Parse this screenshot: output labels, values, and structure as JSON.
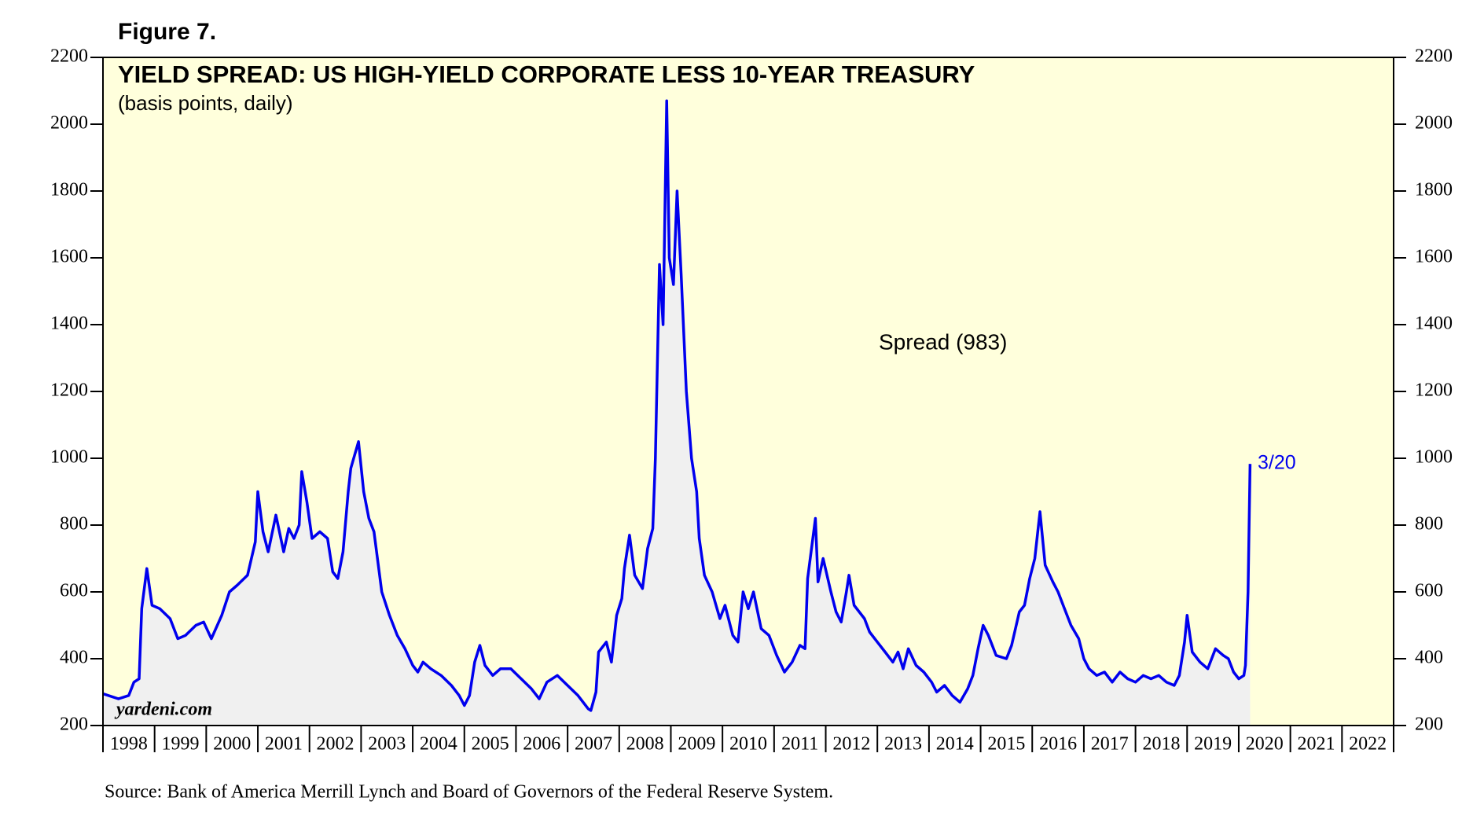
{
  "chart_data": {
    "type": "line",
    "figure_label": "Figure 7.",
    "title": "YIELD SPREAD: US HIGH-YIELD CORPORATE LESS 10-YEAR TREASURY",
    "subtitle": "(basis points, daily)",
    "annotation": "3/20",
    "watermark": "yardeni.com",
    "source": "Source: Bank of America Merrill Lynch and Board of Governors of the Federal Reserve System.",
    "xlim": [
      1998,
      2023
    ],
    "xticks": [
      1998,
      1999,
      2000,
      2001,
      2002,
      2003,
      2004,
      2005,
      2006,
      2007,
      2008,
      2009,
      2010,
      2011,
      2012,
      2013,
      2014,
      2015,
      2016,
      2017,
      2018,
      2019,
      2020,
      2021,
      2022,
      2023
    ],
    "year_labels": [
      {
        "value": 1998.5,
        "label": "1998"
      },
      {
        "value": 1999.5,
        "label": "1999"
      },
      {
        "value": 2000.5,
        "label": "2000"
      },
      {
        "value": 2001.5,
        "label": "2001"
      },
      {
        "value": 2002.5,
        "label": "2002"
      },
      {
        "value": 2003.5,
        "label": "2003"
      },
      {
        "value": 2004.5,
        "label": "2004"
      },
      {
        "value": 2005.5,
        "label": "2005"
      },
      {
        "value": 2006.5,
        "label": "2006"
      },
      {
        "value": 2007.5,
        "label": "2007"
      },
      {
        "value": 2008.5,
        "label": "2008"
      },
      {
        "value": 2009.5,
        "label": "2009"
      },
      {
        "value": 2010.5,
        "label": "2010"
      },
      {
        "value": 2011.5,
        "label": "2011"
      },
      {
        "value": 2012.5,
        "label": "2012"
      },
      {
        "value": 2013.5,
        "label": "2013"
      },
      {
        "value": 2014.5,
        "label": "2014"
      },
      {
        "value": 2015.5,
        "label": "2015"
      },
      {
        "value": 2016.5,
        "label": "2016"
      },
      {
        "value": 2017.5,
        "label": "2017"
      },
      {
        "value": 2018.5,
        "label": "2018"
      },
      {
        "value": 2019.5,
        "label": "2019"
      },
      {
        "value": 2020.5,
        "label": "2020"
      },
      {
        "value": 2021.5,
        "label": "2021"
      },
      {
        "value": 2022.5,
        "label": "2022"
      }
    ],
    "ylim": [
      200,
      2200
    ],
    "yticks": [
      200,
      400,
      600,
      800,
      1000,
      1200,
      1400,
      1600,
      1800,
      2000,
      2200
    ],
    "y2lim": [
      200,
      2200
    ],
    "y2ticks": [
      200,
      400,
      600,
      800,
      1000,
      1200,
      1400,
      1600,
      1800,
      2000,
      2200
    ],
    "background": "#ffffdc",
    "area_color": "#f0f0f0",
    "series": [
      {
        "name": "Spread (983)",
        "color": "#0000ee",
        "x": [
          1998.0,
          1998.3,
          1998.5,
          1998.6,
          1998.7,
          1998.75,
          1998.85,
          1998.95,
          1999.1,
          1999.3,
          1999.45,
          1999.6,
          1999.8,
          1999.95,
          2000.1,
          2000.3,
          2000.45,
          2000.6,
          2000.8,
          2000.95,
          2001.0,
          2001.1,
          2001.2,
          2001.35,
          2001.5,
          2001.6,
          2001.7,
          2001.8,
          2001.85,
          2001.95,
          2002.05,
          2002.2,
          2002.35,
          2002.45,
          2002.55,
          2002.65,
          2002.75,
          2002.8,
          2002.95,
          2003.05,
          2003.15,
          2003.25,
          2003.4,
          2003.55,
          2003.7,
          2003.85,
          2004.0,
          2004.1,
          2004.2,
          2004.35,
          2004.55,
          2004.75,
          2004.9,
          2005.0,
          2005.1,
          2005.2,
          2005.3,
          2005.4,
          2005.55,
          2005.7,
          2005.9,
          2006.1,
          2006.3,
          2006.45,
          2006.6,
          2006.8,
          2007.0,
          2007.2,
          2007.4,
          2007.45,
          2007.55,
          2007.6,
          2007.75,
          2007.85,
          2007.95,
          2008.05,
          2008.1,
          2008.2,
          2008.3,
          2008.45,
          2008.55,
          2008.65,
          2008.7,
          2008.78,
          2008.85,
          2008.92,
          2008.97,
          2009.05,
          2009.12,
          2009.2,
          2009.3,
          2009.4,
          2009.5,
          2009.55,
          2009.65,
          2009.8,
          2009.95,
          2010.05,
          2010.2,
          2010.3,
          2010.4,
          2010.5,
          2010.6,
          2010.75,
          2010.9,
          2011.05,
          2011.2,
          2011.35,
          2011.5,
          2011.6,
          2011.65,
          2011.8,
          2011.85,
          2011.95,
          2012.1,
          2012.2,
          2012.3,
          2012.4,
          2012.45,
          2012.55,
          2012.75,
          2012.85,
          2013.0,
          2013.15,
          2013.3,
          2013.4,
          2013.5,
          2013.6,
          2013.75,
          2013.9,
          2014.05,
          2014.15,
          2014.3,
          2014.45,
          2014.6,
          2014.75,
          2014.85,
          2014.95,
          2015.05,
          2015.15,
          2015.3,
          2015.5,
          2015.6,
          2015.75,
          2015.85,
          2015.95,
          2016.05,
          2016.15,
          2016.25,
          2016.4,
          2016.5,
          2016.6,
          2016.75,
          2016.9,
          2017.0,
          2017.1,
          2017.25,
          2017.4,
          2017.55,
          2017.7,
          2017.85,
          2018.0,
          2018.15,
          2018.3,
          2018.45,
          2018.6,
          2018.75,
          2018.85,
          2018.95,
          2019.0,
          2019.1,
          2019.25,
          2019.4,
          2019.55,
          2019.7,
          2019.8,
          2019.9,
          2020.0,
          2020.1,
          2020.13,
          2020.18,
          2020.22
        ],
        "values": [
          295,
          280,
          290,
          330,
          340,
          550,
          670,
          560,
          550,
          520,
          460,
          470,
          500,
          510,
          460,
          530,
          600,
          620,
          650,
          750,
          900,
          780,
          720,
          830,
          720,
          790,
          760,
          800,
          960,
          870,
          760,
          780,
          760,
          660,
          640,
          720,
          900,
          970,
          1050,
          900,
          820,
          780,
          600,
          530,
          470,
          430,
          380,
          360,
          390,
          370,
          350,
          320,
          290,
          260,
          290,
          390,
          440,
          380,
          350,
          370,
          370,
          340,
          310,
          280,
          330,
          350,
          320,
          290,
          250,
          245,
          300,
          420,
          450,
          390,
          530,
          580,
          670,
          770,
          650,
          610,
          730,
          790,
          1000,
          1580,
          1400,
          2070,
          1600,
          1520,
          1800,
          1550,
          1200,
          1000,
          900,
          760,
          650,
          600,
          520,
          560,
          470,
          450,
          600,
          550,
          600,
          490,
          470,
          410,
          360,
          390,
          440,
          430,
          640,
          820,
          630,
          700,
          600,
          540,
          510,
          600,
          650,
          560,
          520,
          480,
          450,
          420,
          390,
          420,
          370,
          430,
          380,
          360,
          330,
          300,
          320,
          290,
          270,
          310,
          350,
          430,
          500,
          470,
          410,
          400,
          440,
          540,
          560,
          640,
          700,
          840,
          680,
          630,
          600,
          560,
          500,
          460,
          400,
          370,
          350,
          360,
          330,
          360,
          340,
          330,
          350,
          340,
          350,
          330,
          320,
          350,
          450,
          530,
          420,
          390,
          370,
          430,
          410,
          400,
          360,
          340,
          350,
          380,
          600,
          983
        ]
      }
    ]
  }
}
